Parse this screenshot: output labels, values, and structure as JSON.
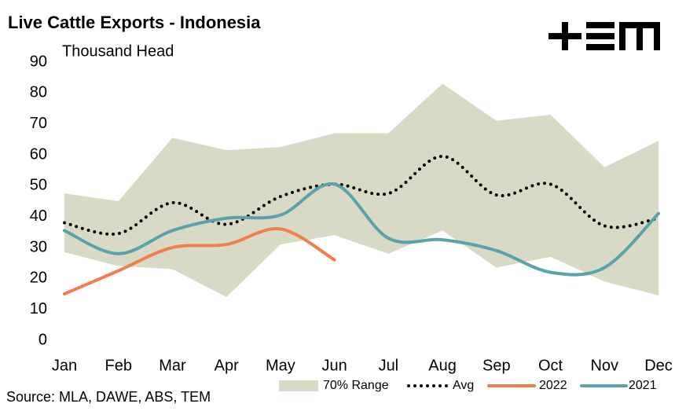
{
  "chart_data": {
    "type": "line",
    "title": "Live Cattle Exports - Indonesia",
    "y_label": "Thousand Head",
    "source": "Source: MLA, DAWE, ABS, TEM",
    "categories": [
      "Jan",
      "Feb",
      "Mar",
      "Apr",
      "May",
      "Jun",
      "Jul",
      "Aug",
      "Sep",
      "Oct",
      "Nov",
      "Dec"
    ],
    "range": {
      "name": "70% Range",
      "color": "#d9dac6",
      "high": [
        47.5,
        45,
        65.5,
        61.5,
        62.5,
        67,
        67,
        83,
        71,
        73,
        56,
        64.5
      ],
      "low": [
        28.5,
        24,
        23,
        14,
        31,
        34,
        28,
        35.5,
        23.5,
        27,
        19,
        14.5
      ]
    },
    "series": [
      {
        "name": "Avg",
        "color": "#000000",
        "dotted": true,
        "values": [
          38,
          34.5,
          44.5,
          37.5,
          46.5,
          50.5,
          47.5,
          59.5,
          47,
          50.5,
          37,
          39.5
        ]
      },
      {
        "name": "2022",
        "color": "#f07f4c",
        "values": [
          15,
          22.5,
          30,
          31,
          36,
          26,
          null,
          null,
          null,
          null,
          null,
          null
        ]
      },
      {
        "name": "2021",
        "color": "#5ba3aa",
        "values": [
          35.5,
          28,
          35.5,
          39.5,
          40.5,
          50.5,
          33,
          32.5,
          29,
          22,
          23.5,
          41
        ]
      }
    ],
    "ylim": [
      0,
      90
    ],
    "yticks": [
      0,
      10,
      20,
      30,
      40,
      50,
      60,
      70,
      80,
      90
    ],
    "grid": false,
    "legend": "bottom"
  }
}
